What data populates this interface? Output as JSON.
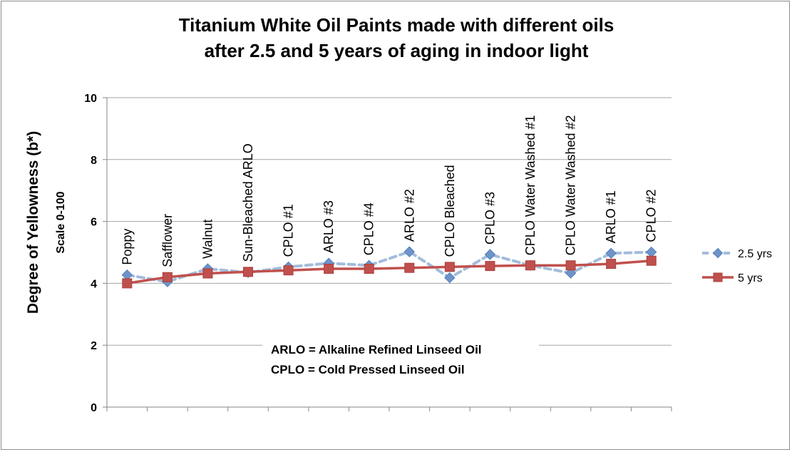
{
  "chart_data": {
    "type": "line",
    "title": [
      "Titanium White Oil Paints made with different oils",
      "after 2.5 and 5 years of aging in indoor light"
    ],
    "ylabel": "Degree  of  Yellowness (b*)",
    "ylabel_sub": "Scale 0-100",
    "xlabel": "",
    "ylim": [
      0,
      10
    ],
    "yticks": [
      0,
      2,
      4,
      6,
      8,
      10
    ],
    "grid": "horizontal",
    "legend_position": "right",
    "categories": [
      "Poppy",
      "Safflower",
      "Walnut",
      "Sun-Bleached ARLO",
      "CPLO #1",
      "ARLO #3",
      "CPLO #4",
      "ARLO #2",
      "CPLO Bleached",
      "CPLO #3",
      "CPLO Water Washed #1",
      "CPLO Water Washed #2",
      "ARLO #1",
      "CPLO #2"
    ],
    "series": [
      {
        "name": "2.5 yrs",
        "color": "#a3bcdb",
        "marker_color": "#6f93c8",
        "style": "dashed",
        "marker": "diamond",
        "values": [
          4.27,
          4.05,
          4.47,
          4.35,
          4.53,
          4.65,
          4.58,
          5.02,
          4.18,
          4.93,
          4.58,
          4.33,
          4.97,
          5.01
        ]
      },
      {
        "name": "5 yrs",
        "color": "#c0504d",
        "marker_color": "#c0504d",
        "style": "solid",
        "marker": "square",
        "values": [
          4.0,
          4.2,
          4.32,
          4.37,
          4.42,
          4.47,
          4.47,
          4.5,
          4.53,
          4.56,
          4.58,
          4.58,
          4.63,
          4.73
        ]
      }
    ],
    "annotations": [
      "ARLO = Alkaline Refined Linseed Oil",
      "CPLO = Cold Pressed Linseed Oil"
    ]
  }
}
